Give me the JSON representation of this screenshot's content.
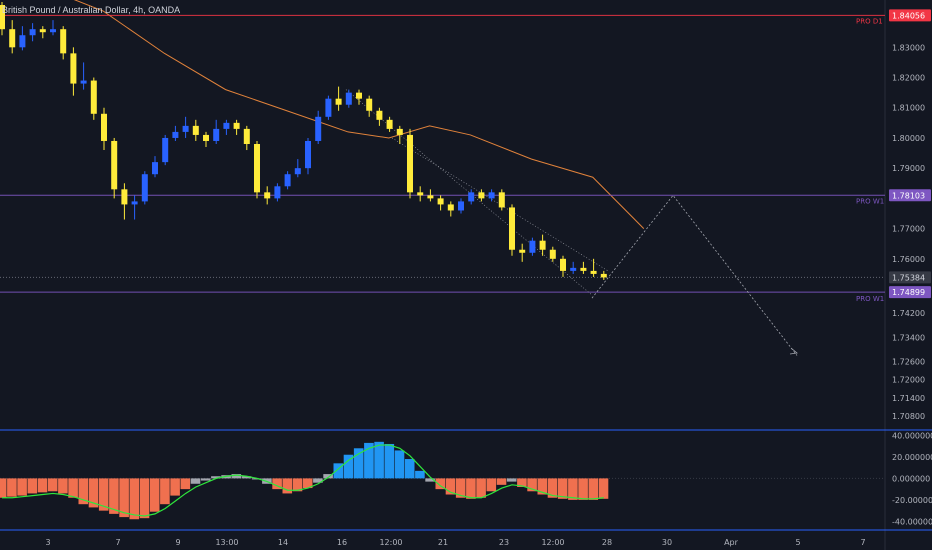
{
  "title": "British Pound / Australian Dollar, 4h, OANDA",
  "colors": {
    "background": "#131722",
    "bull": "#2962ff",
    "bear": "#ffeb3b",
    "ma": "#e0823b",
    "axis_text": "#b2b5be",
    "pro_d1": "#f23645",
    "pro_w1": "#7e57c2",
    "histogram_up": "#2196f3",
    "histogram_down": "#f0704f",
    "histogram_neutral": "#a3a6af",
    "signal": "#2ee63c",
    "annotation": "#a3a6af"
  },
  "chart_data": {
    "type": "candlestick",
    "price_axis": {
      "ylim": [
        1.704,
        1.845
      ],
      "ticks": [
        "1.83000",
        "1.82000",
        "1.81000",
        "1.80000",
        "1.79000",
        "1.77000",
        "1.76000",
        "1.74200",
        "1.73400",
        "1.72600",
        "1.72000",
        "1.71400",
        "1.70800"
      ]
    },
    "x_axis": {
      "tick_labels": [
        "3",
        "7",
        "9",
        "13:00",
        "14",
        "16",
        "12:00",
        "21",
        "23",
        "12:00",
        "28",
        "30",
        "Apr",
        "5",
        "7"
      ]
    },
    "price_labels": [
      {
        "id": "pro-d1",
        "text": "PRO D1",
        "value": "1.84056",
        "price": 1.84056,
        "style": "pro_d1"
      },
      {
        "id": "pro-w1-upper",
        "text": "PRO W1",
        "value": "1.78103",
        "price": 1.78103,
        "style": "pro_w1"
      },
      {
        "id": "last-price",
        "text": "",
        "value": "1.75384",
        "price": 1.75384,
        "style": "last"
      },
      {
        "id": "pro-w1-lower",
        "text": "PRO W1",
        "value": "1.74899",
        "price": 1.74899,
        "style": "pro_w1"
      }
    ],
    "candles": [
      [
        1.844,
        1.845,
        1.834,
        1.836
      ],
      [
        1.836,
        1.839,
        1.828,
        1.83
      ],
      [
        1.83,
        1.837,
        1.829,
        1.834
      ],
      [
        1.834,
        1.838,
        1.832,
        1.836
      ],
      [
        1.836,
        1.837,
        1.833,
        1.835
      ],
      [
        1.835,
        1.839,
        1.834,
        1.836
      ],
      [
        1.836,
        1.837,
        1.826,
        1.828
      ],
      [
        1.828,
        1.83,
        1.814,
        1.818
      ],
      [
        1.818,
        1.825,
        1.816,
        1.819
      ],
      [
        1.819,
        1.82,
        1.806,
        1.808
      ],
      [
        1.808,
        1.81,
        1.796,
        1.799
      ],
      [
        1.799,
        1.8,
        1.78,
        1.783
      ],
      [
        1.783,
        1.785,
        1.773,
        1.778
      ],
      [
        1.778,
        1.781,
        1.773,
        1.779
      ],
      [
        1.779,
        1.789,
        1.778,
        1.788
      ],
      [
        1.788,
        1.794,
        1.787,
        1.792
      ],
      [
        1.792,
        1.801,
        1.791,
        1.8
      ],
      [
        1.8,
        1.804,
        1.799,
        1.802
      ],
      [
        1.802,
        1.807,
        1.8,
        1.804
      ],
      [
        1.804,
        1.806,
        1.799,
        1.801
      ],
      [
        1.801,
        1.802,
        1.797,
        1.799
      ],
      [
        1.799,
        1.806,
        1.798,
        1.803
      ],
      [
        1.803,
        1.806,
        1.801,
        1.805
      ],
      [
        1.805,
        1.806,
        1.801,
        1.803
      ],
      [
        1.803,
        1.804,
        1.796,
        1.798
      ],
      [
        1.798,
        1.799,
        1.78,
        1.782
      ],
      [
        1.782,
        1.784,
        1.778,
        1.78
      ],
      [
        1.78,
        1.785,
        1.779,
        1.784
      ],
      [
        1.784,
        1.789,
        1.783,
        1.788
      ],
      [
        1.788,
        1.793,
        1.787,
        1.79
      ],
      [
        1.79,
        1.8,
        1.788,
        1.799
      ],
      [
        1.799,
        1.809,
        1.798,
        1.807
      ],
      [
        1.807,
        1.814,
        1.806,
        1.813
      ],
      [
        1.813,
        1.817,
        1.809,
        1.811
      ],
      [
        1.811,
        1.816,
        1.81,
        1.815
      ],
      [
        1.815,
        1.816,
        1.811,
        1.813
      ],
      [
        1.813,
        1.814,
        1.807,
        1.809
      ],
      [
        1.809,
        1.81,
        1.804,
        1.806
      ],
      [
        1.806,
        1.807,
        1.802,
        1.803
      ],
      [
        1.803,
        1.804,
        1.798,
        1.801
      ],
      [
        1.801,
        1.803,
        1.78,
        1.782
      ],
      [
        1.782,
        1.784,
        1.779,
        1.781
      ],
      [
        1.781,
        1.783,
        1.779,
        1.78
      ],
      [
        1.78,
        1.781,
        1.776,
        1.778
      ],
      [
        1.778,
        1.779,
        1.774,
        1.776
      ],
      [
        1.776,
        1.78,
        1.775,
        1.779
      ],
      [
        1.779,
        1.783,
        1.778,
        1.782
      ],
      [
        1.782,
        1.783,
        1.779,
        1.78
      ],
      [
        1.78,
        1.783,
        1.779,
        1.782
      ],
      [
        1.782,
        1.783,
        1.776,
        1.777
      ],
      [
        1.777,
        1.778,
        1.761,
        1.763
      ],
      [
        1.763,
        1.765,
        1.759,
        1.762
      ],
      [
        1.762,
        1.767,
        1.761,
        1.766
      ],
      [
        1.766,
        1.768,
        1.761,
        1.763
      ],
      [
        1.763,
        1.764,
        1.759,
        1.76
      ],
      [
        1.76,
        1.761,
        1.754,
        1.756
      ],
      [
        1.756,
        1.759,
        1.755,
        1.757
      ],
      [
        1.757,
        1.759,
        1.755,
        1.756
      ],
      [
        1.756,
        1.76,
        1.754,
        1.755
      ],
      [
        1.755,
        1.756,
        1.753,
        1.75384
      ]
    ],
    "moving_average": [
      [
        0,
        1.85
      ],
      [
        6,
        1.842
      ],
      [
        12,
        1.828
      ],
      [
        18,
        1.816
      ],
      [
        24,
        1.809
      ],
      [
        30,
        1.802
      ],
      [
        34,
        1.8
      ],
      [
        38,
        1.804
      ],
      [
        42,
        1.801
      ],
      [
        48,
        1.793
      ],
      [
        54,
        1.787
      ],
      [
        59,
        1.77
      ]
    ],
    "projection": [
      [
        1.747
      ],
      [
        1.781
      ],
      [
        1.728
      ]
    ],
    "channel": [
      [
        1.816
      ],
      [
        1.748
      ]
    ]
  },
  "indicator": {
    "ylim": [
      -48,
      45
    ],
    "ticks": [
      "40.000000",
      "20.000000",
      "0.000000",
      "-20.000000",
      "-40.000000"
    ],
    "histogram": [
      -18,
      -17,
      -16,
      -14,
      -13,
      -12,
      -14,
      -18,
      -24,
      -27,
      -30,
      -33,
      -36,
      -38,
      -37,
      -31,
      -24,
      -16,
      -10,
      -5,
      -2,
      2,
      3,
      4,
      2,
      -1,
      -5,
      -10,
      -14,
      -12,
      -9,
      -4,
      4,
      14,
      22,
      28,
      33,
      34,
      32,
      26,
      18,
      7,
      -3,
      -10,
      -15,
      -18,
      -19,
      -18,
      -12,
      -6,
      -3,
      -8,
      -12,
      -15,
      -18,
      -19,
      -20,
      -20,
      -20,
      -19
    ],
    "signal": [
      -18,
      -18,
      -17,
      -16,
      -15,
      -14,
      -15,
      -17,
      -20,
      -23,
      -26,
      -29,
      -32,
      -34,
      -35,
      -33,
      -28,
      -21,
      -14,
      -8,
      -4,
      0,
      2,
      3,
      2,
      0,
      -3,
      -7,
      -11,
      -11,
      -9,
      -5,
      1,
      9,
      17,
      23,
      28,
      31,
      31,
      28,
      21,
      11,
      1,
      -7,
      -13,
      -16,
      -18,
      -18,
      -14,
      -9,
      -6,
      -7,
      -10,
      -13,
      -16,
      -17,
      -18,
      -19,
      -19,
      -18
    ]
  }
}
